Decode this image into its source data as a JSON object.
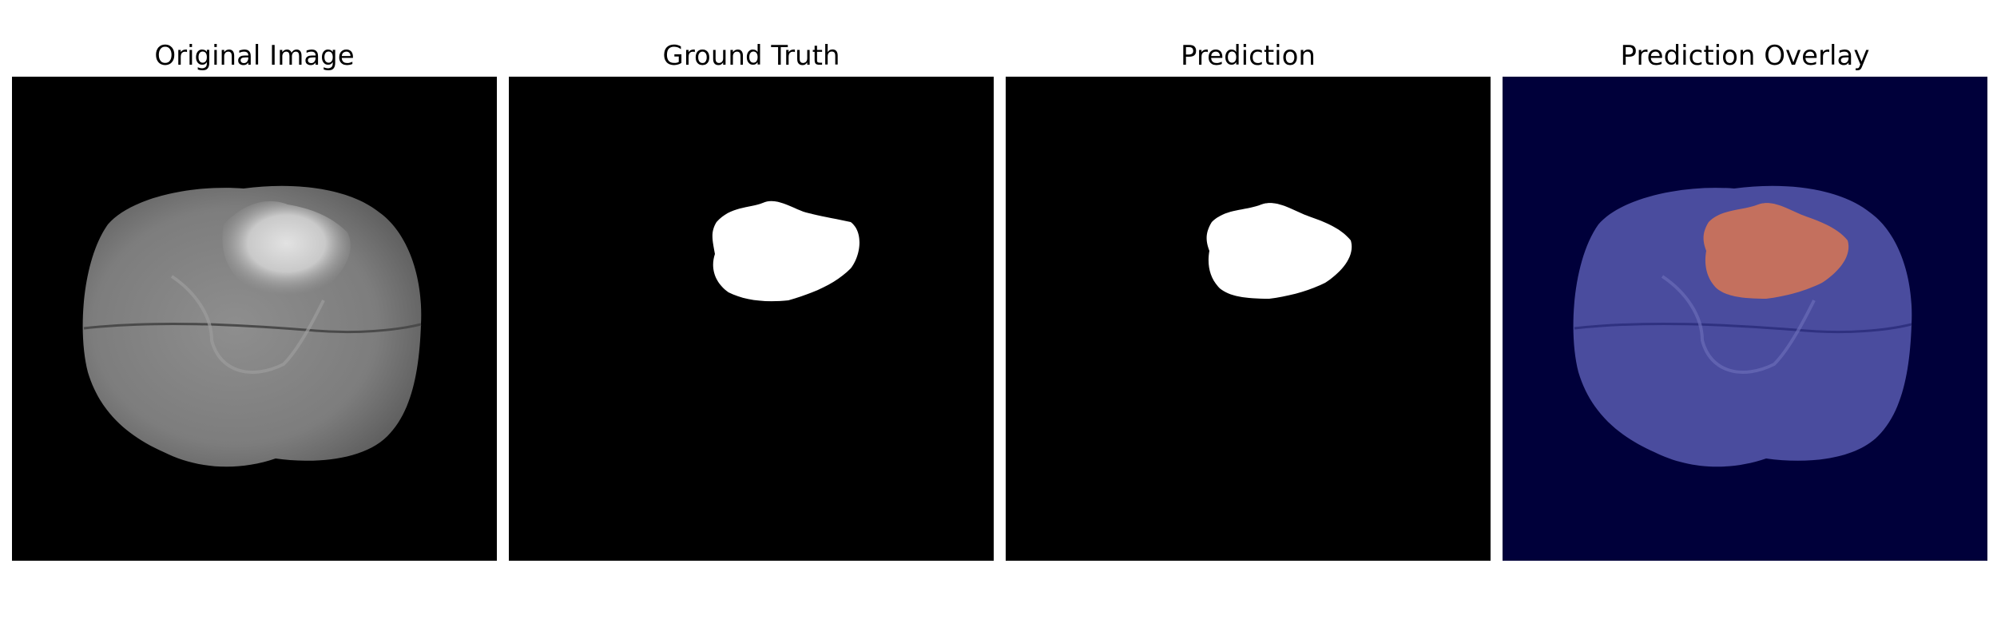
{
  "figure": {
    "panels": [
      {
        "title": "Original Image"
      },
      {
        "title": "Ground Truth"
      },
      {
        "title": "Prediction"
      },
      {
        "title": "Prediction Overlay"
      }
    ]
  },
  "colors": {
    "background": "#000000",
    "mask": "#ffffff",
    "overlay_background": "#00003a",
    "overlay_brain": "#4a4c9e",
    "overlay_tumor": "#c4705e"
  }
}
